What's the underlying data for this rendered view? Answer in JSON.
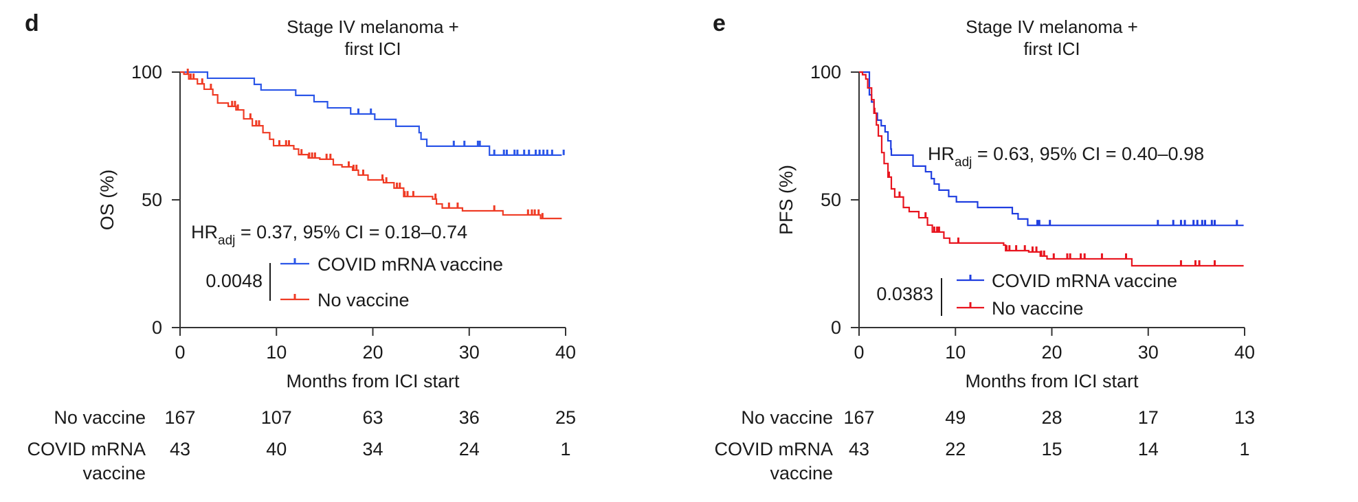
{
  "chart_data": [
    {
      "panel": "d",
      "type": "line",
      "subtype": "kaplan-meier",
      "title": [
        "Stage IV melanoma +",
        "first ICI"
      ],
      "xlabel": "Months from ICI start",
      "ylabel": "OS (%)",
      "xlim": [
        0,
        40
      ],
      "ylim": [
        0,
        100
      ],
      "xticks": [
        0,
        10,
        20,
        30,
        40
      ],
      "yticks": [
        0,
        50,
        100
      ],
      "grid": false,
      "stat": {
        "prefix": "HR",
        "sub": "adj",
        "text": " = 0.37, 95% CI = 0.18–0.74"
      },
      "p_value": "0.0048",
      "legend": {
        "placement": "bottom-center",
        "entries": [
          "COVID mRNA vaccine",
          "No vaccine"
        ]
      },
      "series": [
        {
          "name": "COVID mRNA vaccine",
          "color": "#2b56e8",
          "steps": [
            [
              0,
              100
            ],
            [
              2.85,
              97.6
            ],
            [
              7.7,
              95.2
            ],
            [
              8.4,
              93.0
            ],
            [
              12.0,
              90.9
            ],
            [
              13.9,
              88.4
            ],
            [
              15.3,
              86.0
            ],
            [
              17.7,
              83.6
            ],
            [
              20.2,
              81.5
            ],
            [
              22.4,
              78.8
            ],
            [
              24.8,
              76.3
            ],
            [
              25.0,
              73.7
            ],
            [
              25.6,
              71.0
            ],
            [
              32.1,
              67.5
            ],
            [
              39.6,
              67.5
            ]
          ],
          "censored": [
            18.5,
            19.8,
            28.4,
            29.5,
            30.9,
            31.1,
            32.6,
            33.6,
            33.9,
            34.7,
            35.0,
            35.7,
            36.2,
            36.9,
            37.3,
            37.7,
            38.1,
            38.6,
            39.8
          ]
        },
        {
          "name": "No vaccine",
          "color": "#ef3b24",
          "steps": [
            [
              0,
              100
            ],
            [
              0.4,
              99.2
            ],
            [
              0.9,
              97.3
            ],
            [
              1.8,
              95.4
            ],
            [
              2.5,
              93.3
            ],
            [
              3.4,
              91.1
            ],
            [
              3.9,
              87.9
            ],
            [
              5.0,
              86.6
            ],
            [
              5.8,
              85.2
            ],
            [
              6.6,
              81.7
            ],
            [
              7.5,
              79.0
            ],
            [
              8.6,
              76.3
            ],
            [
              9.3,
              73.7
            ],
            [
              9.7,
              71.2
            ],
            [
              11.8,
              69.9
            ],
            [
              12.3,
              67.7
            ],
            [
              13.3,
              66.4
            ],
            [
              14.5,
              65.9
            ],
            [
              15.9,
              63.7
            ],
            [
              16.8,
              62.9
            ],
            [
              17.9,
              61.6
            ],
            [
              18.5,
              59.7
            ],
            [
              19.5,
              57.8
            ],
            [
              21.1,
              56.7
            ],
            [
              22.2,
              54.6
            ],
            [
              23.2,
              51.3
            ],
            [
              26.2,
              50.3
            ],
            [
              26.6,
              48.4
            ],
            [
              27.2,
              46.8
            ],
            [
              29.3,
              45.7
            ],
            [
              33.5,
              44.1
            ],
            [
              37.4,
              42.7
            ],
            [
              39.6,
              42.7
            ]
          ],
          "censored": [
            0.8,
            1.1,
            1.4,
            2.3,
            3.2,
            5.4,
            5.7,
            6.0,
            7.3,
            7.9,
            8.2,
            10.3,
            11.0,
            11.3,
            12.6,
            13.4,
            13.7,
            14.0,
            15.2,
            15.6,
            17.5,
            18.0,
            18.3,
            19.0,
            21.0,
            21.4,
            22.5,
            22.8,
            23.3,
            23.6,
            24.2,
            26.5,
            27.9,
            28.8,
            32.6,
            36.1,
            36.5,
            36.8,
            37.2,
            37.6
          ]
        }
      ],
      "at_risk": {
        "times": [
          0,
          10,
          20,
          30,
          40
        ],
        "rows": [
          {
            "label": [
              "No vaccine"
            ],
            "values": [
              167,
              107,
              63,
              36,
              25
            ]
          },
          {
            "label": [
              "COVID mRNA",
              "vaccine"
            ],
            "values": [
              43,
              40,
              34,
              24,
              1
            ]
          }
        ]
      }
    },
    {
      "panel": "e",
      "type": "line",
      "subtype": "kaplan-meier",
      "title": [
        "Stage IV melanoma +",
        "first ICI"
      ],
      "xlabel": "Months from ICI start",
      "ylabel": "PFS (%)",
      "xlim": [
        0,
        40
      ],
      "ylim": [
        0,
        100
      ],
      "xticks": [
        0,
        10,
        20,
        30,
        40
      ],
      "yticks": [
        0,
        50,
        100
      ],
      "grid": false,
      "stat": {
        "prefix": "HR",
        "sub": "adj",
        "text": " = 0.63, 95% CI = 0.40–0.98"
      },
      "p_value": "0.0383",
      "legend": {
        "placement": "bottom-center",
        "entries": [
          "COVID mRNA vaccine",
          "No vaccine"
        ]
      },
      "series": [
        {
          "name": "COVID mRNA vaccine",
          "color": "#1f3ee0",
          "steps": [
            [
              0,
              100
            ],
            [
              1.07,
              91.1
            ],
            [
              1.3,
              88.3
            ],
            [
              1.55,
              83.9
            ],
            [
              1.9,
              81.2
            ],
            [
              2.3,
              79.0
            ],
            [
              2.7,
              76.6
            ],
            [
              3.0,
              73.1
            ],
            [
              3.3,
              69.9
            ],
            [
              3.35,
              67.5
            ],
            [
              5.6,
              63.2
            ],
            [
              6.9,
              61.0
            ],
            [
              7.5,
              58.3
            ],
            [
              7.8,
              56.2
            ],
            [
              8.3,
              53.8
            ],
            [
              9.3,
              51.3
            ],
            [
              10.1,
              49.2
            ],
            [
              12.3,
              47.0
            ],
            [
              15.9,
              44.6
            ],
            [
              16.5,
              42.5
            ],
            [
              17.5,
              40.0
            ],
            [
              39.9,
              40.0
            ]
          ],
          "censored": [
            18.5,
            18.7,
            19.8,
            31.0,
            32.6,
            33.4,
            33.8,
            34.7,
            35.1,
            35.6,
            35.9,
            36.6,
            36.9,
            39.2
          ]
        },
        {
          "name": "No vaccine",
          "color": "#e8141e",
          "steps": [
            [
              0,
              100
            ],
            [
              0.36,
              99.0
            ],
            [
              0.7,
              97.3
            ],
            [
              0.9,
              93.8
            ],
            [
              1.3,
              89.2
            ],
            [
              1.55,
              83.9
            ],
            [
              1.8,
              79.3
            ],
            [
              2.0,
              75.0
            ],
            [
              2.35,
              68.5
            ],
            [
              2.6,
              64.2
            ],
            [
              3.0,
              58.9
            ],
            [
              3.35,
              54.3
            ],
            [
              3.7,
              51.1
            ],
            [
              4.6,
              47.0
            ],
            [
              5.2,
              45.4
            ],
            [
              6.2,
              43.0
            ],
            [
              7.1,
              40.1
            ],
            [
              7.6,
              37.4
            ],
            [
              8.8,
              35.0
            ],
            [
              9.4,
              33.1
            ],
            [
              15.0,
              32.3
            ],
            [
              15.2,
              30.1
            ],
            [
              17.6,
              29.6
            ],
            [
              18.8,
              28.0
            ],
            [
              19.5,
              26.9
            ],
            [
              28.3,
              24.2
            ],
            [
              39.9,
              24.2
            ]
          ],
          "censored": [
            1.6,
            3.1,
            4.2,
            6.9,
            7.8,
            8.1,
            8.3,
            10.3,
            15.3,
            15.6,
            16.3,
            17.2,
            18.0,
            18.4,
            18.9,
            19.2,
            20.2,
            21.6,
            21.9,
            23.0,
            23.4,
            25.2,
            27.7,
            33.4,
            34.9,
            35.3,
            36.9
          ]
        }
      ],
      "at_risk": {
        "times": [
          0,
          10,
          20,
          30,
          40
        ],
        "rows": [
          {
            "label": [
              "No vaccine"
            ],
            "values": [
              167,
              49,
              28,
              17,
              13
            ]
          },
          {
            "label": [
              "COVID mRNA",
              "vaccine"
            ],
            "values": [
              43,
              22,
              15,
              14,
              1
            ]
          }
        ]
      }
    }
  ]
}
